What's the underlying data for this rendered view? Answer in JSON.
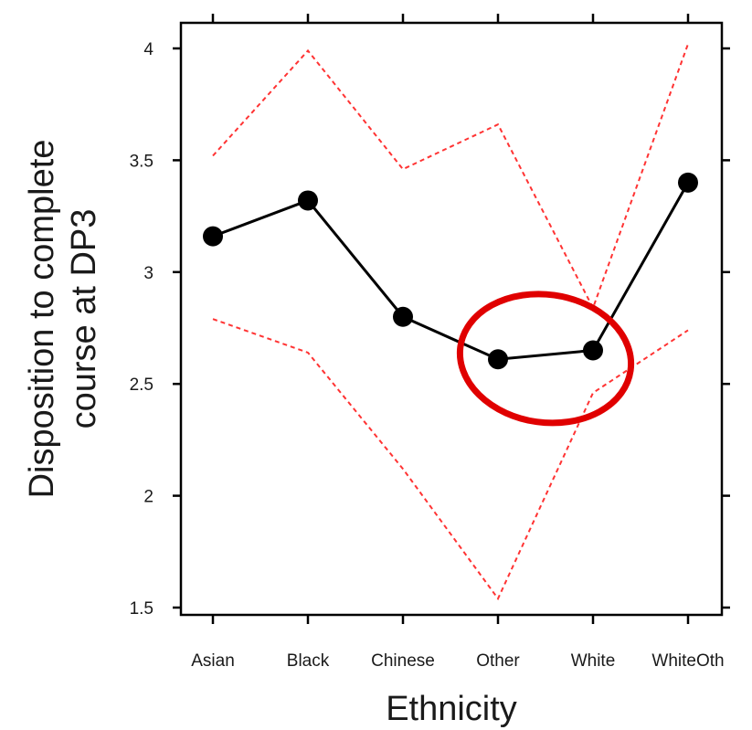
{
  "chart_data": {
    "type": "line",
    "xlabel": "Ethnicity",
    "ylabel_lines": [
      "Disposition to complete",
      "course at DP3"
    ],
    "categories": [
      "Asian",
      "Black",
      "Chinese",
      "Other",
      "White",
      "WhiteOth"
    ],
    "ylim": [
      1.5,
      4.0
    ],
    "yticks": [
      1.5,
      2,
      2.5,
      3,
      3.5,
      4
    ],
    "ytick_labels": [
      "1.5",
      "2",
      "2.5",
      "3",
      "3.5",
      "4"
    ],
    "grid": false,
    "series": [
      {
        "role": "estimate",
        "style": "solid line with filled circle markers",
        "color": "#000000",
        "values": [
          3.16,
          3.32,
          2.8,
          2.61,
          2.65,
          3.4
        ]
      },
      {
        "role": "upper bound",
        "style": "dashed line",
        "color": "#ff3333",
        "values": [
          3.52,
          3.99,
          3.46,
          3.66,
          2.84,
          4.02
        ]
      },
      {
        "role": "lower bound",
        "style": "dashed line",
        "color": "#ff3333",
        "values": [
          2.79,
          2.64,
          2.12,
          1.54,
          2.46,
          2.74
        ]
      }
    ],
    "annotations": [
      {
        "type": "ellipse",
        "color": "#e00000",
        "encloses": [
          "Other",
          "White"
        ]
      }
    ]
  }
}
